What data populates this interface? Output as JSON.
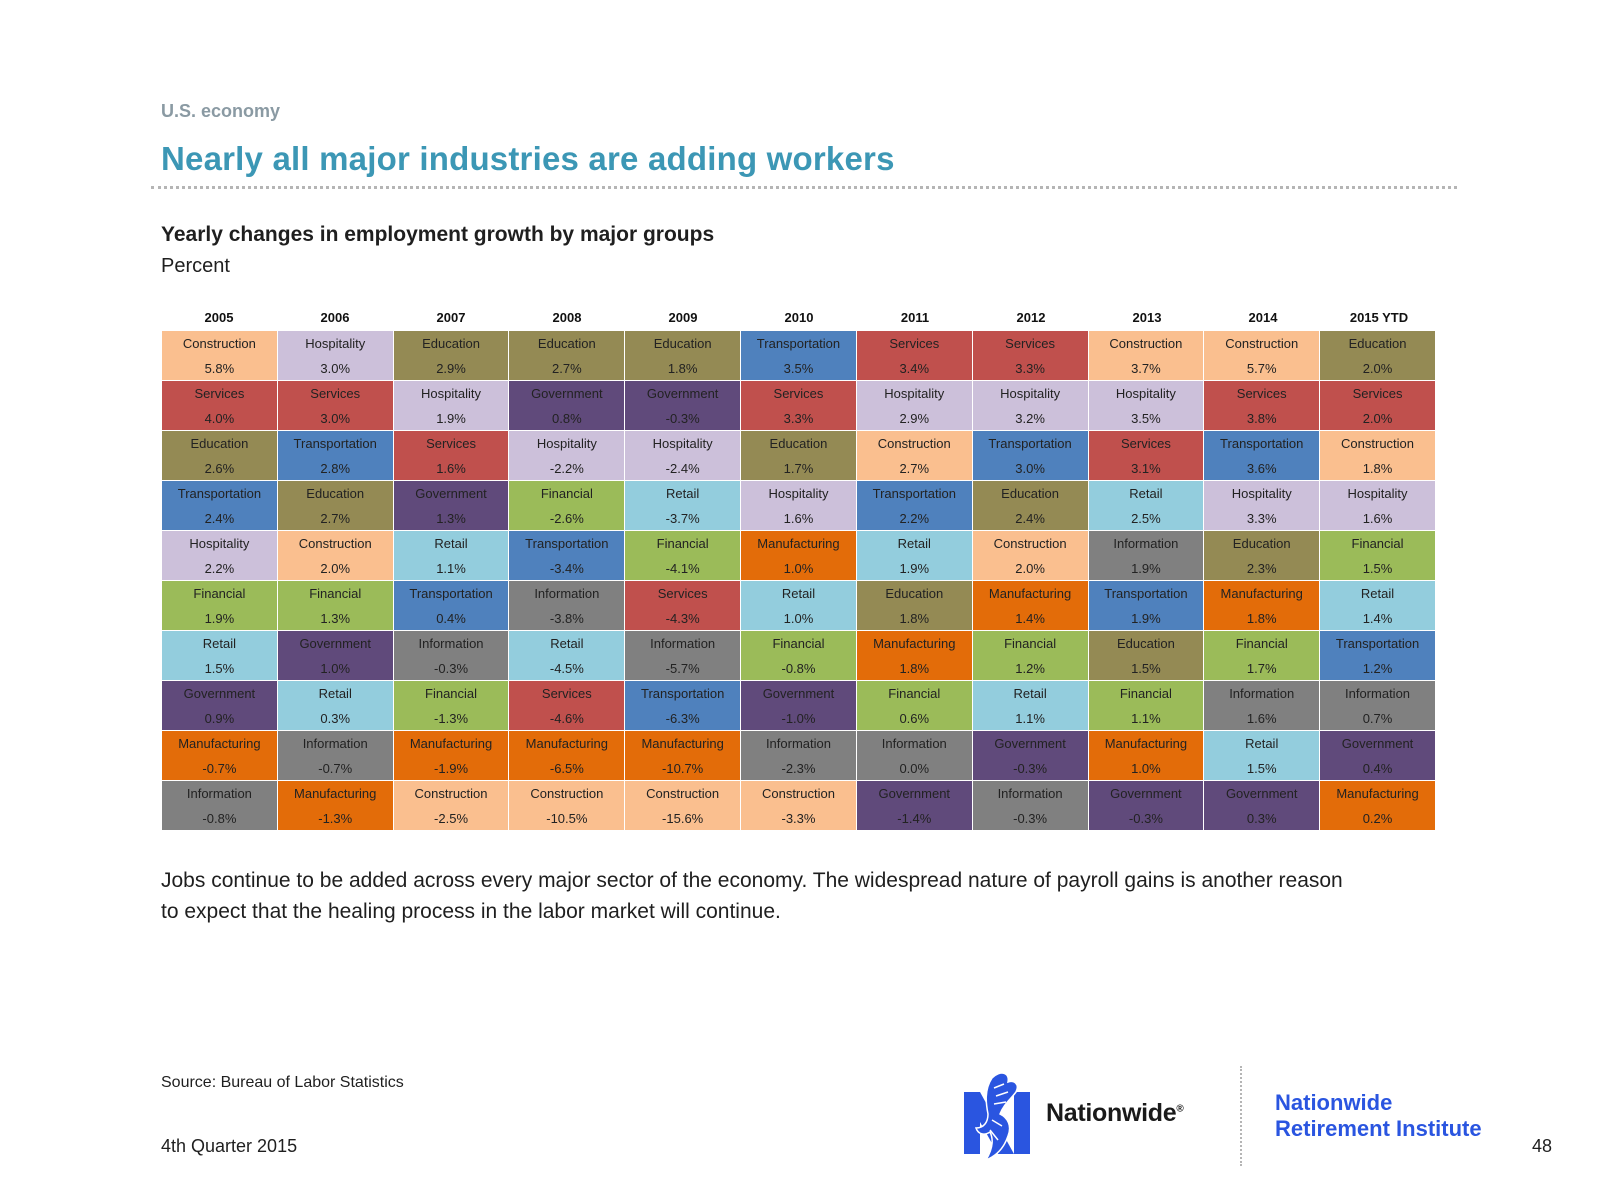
{
  "header": {
    "kicker": "U.S. economy",
    "title": "Nearly all major industries are adding workers"
  },
  "chart_data": {
    "type": "table",
    "title": "Yearly changes in employment growth by major groups",
    "subtitle": "Percent",
    "years": [
      "2005",
      "2006",
      "2007",
      "2008",
      "2009",
      "2010",
      "2011",
      "2012",
      "2013",
      "2014",
      "2015 YTD"
    ],
    "sector_colors": {
      "Construction": "#fabf8f",
      "Hospitality": "#ccc0da",
      "Education": "#948a54",
      "Services": "#c0504d",
      "Government": "#604a7b",
      "Transportation": "#4f81bd",
      "Financial": "#9bbb59",
      "Retail": "#93cddd",
      "Information": "#808080",
      "Manufacturing": "#e36c09"
    },
    "columns": [
      [
        [
          "Construction",
          "5.8%"
        ],
        [
          "Services",
          "4.0%"
        ],
        [
          "Education",
          "2.6%"
        ],
        [
          "Transportation",
          "2.4%"
        ],
        [
          "Hospitality",
          "2.2%"
        ],
        [
          "Financial",
          "1.9%"
        ],
        [
          "Retail",
          "1.5%"
        ],
        [
          "Government",
          "0.9%"
        ],
        [
          "Manufacturing",
          "-0.7%"
        ],
        [
          "Information",
          "-0.8%"
        ]
      ],
      [
        [
          "Hospitality",
          "3.0%"
        ],
        [
          "Services",
          "3.0%"
        ],
        [
          "Transportation",
          "2.8%"
        ],
        [
          "Education",
          "2.7%"
        ],
        [
          "Construction",
          "2.0%"
        ],
        [
          "Financial",
          "1.3%"
        ],
        [
          "Government",
          "1.0%"
        ],
        [
          "Retail",
          "0.3%"
        ],
        [
          "Information",
          "-0.7%"
        ],
        [
          "Manufacturing",
          "-1.3%"
        ]
      ],
      [
        [
          "Education",
          "2.9%"
        ],
        [
          "Hospitality",
          "1.9%"
        ],
        [
          "Services",
          "1.6%"
        ],
        [
          "Government",
          "1.3%"
        ],
        [
          "Retail",
          "1.1%"
        ],
        [
          "Transportation",
          "0.4%"
        ],
        [
          "Information",
          "-0.3%"
        ],
        [
          "Financial",
          "-1.3%"
        ],
        [
          "Manufacturing",
          "-1.9%"
        ],
        [
          "Construction",
          "-2.5%"
        ]
      ],
      [
        [
          "Education",
          "2.7%"
        ],
        [
          "Government",
          "0.8%"
        ],
        [
          "Hospitality",
          "-2.2%"
        ],
        [
          "Financial",
          "-2.6%"
        ],
        [
          "Transportation",
          "-3.4%"
        ],
        [
          "Information",
          "-3.8%"
        ],
        [
          "Retail",
          "-4.5%"
        ],
        [
          "Services",
          "-4.6%"
        ],
        [
          "Manufacturing",
          "-6.5%"
        ],
        [
          "Construction",
          "-10.5%"
        ]
      ],
      [
        [
          "Education",
          "1.8%"
        ],
        [
          "Government",
          "-0.3%"
        ],
        [
          "Hospitality",
          "-2.4%"
        ],
        [
          "Retail",
          "-3.7%"
        ],
        [
          "Financial",
          "-4.1%"
        ],
        [
          "Services",
          "-4.3%"
        ],
        [
          "Information",
          "-5.7%"
        ],
        [
          "Transportation",
          "-6.3%"
        ],
        [
          "Manufacturing",
          "-10.7%"
        ],
        [
          "Construction",
          "-15.6%"
        ]
      ],
      [
        [
          "Transportation",
          "3.5%"
        ],
        [
          "Services",
          "3.3%"
        ],
        [
          "Education",
          "1.7%"
        ],
        [
          "Hospitality",
          "1.6%"
        ],
        [
          "Manufacturing",
          "1.0%"
        ],
        [
          "Retail",
          "1.0%"
        ],
        [
          "Financial",
          "-0.8%"
        ],
        [
          "Government",
          "-1.0%"
        ],
        [
          "Information",
          "-2.3%"
        ],
        [
          "Construction",
          "-3.3%"
        ]
      ],
      [
        [
          "Services",
          "3.4%"
        ],
        [
          "Hospitality",
          "2.9%"
        ],
        [
          "Construction",
          "2.7%"
        ],
        [
          "Transportation",
          "2.2%"
        ],
        [
          "Retail",
          "1.9%"
        ],
        [
          "Education",
          "1.8%"
        ],
        [
          "Manufacturing",
          "1.8%"
        ],
        [
          "Financial",
          "0.6%"
        ],
        [
          "Information",
          "0.0%"
        ],
        [
          "Government",
          "-1.4%"
        ]
      ],
      [
        [
          "Services",
          "3.3%"
        ],
        [
          "Hospitality",
          "3.2%"
        ],
        [
          "Transportation",
          "3.0%"
        ],
        [
          "Education",
          "2.4%"
        ],
        [
          "Construction",
          "2.0%"
        ],
        [
          "Manufacturing",
          "1.4%"
        ],
        [
          "Financial",
          "1.2%"
        ],
        [
          "Retail",
          "1.1%"
        ],
        [
          "Government",
          "-0.3%"
        ],
        [
          "Information",
          "-0.3%"
        ]
      ],
      [
        [
          "Construction",
          "3.7%"
        ],
        [
          "Hospitality",
          "3.5%"
        ],
        [
          "Services",
          "3.1%"
        ],
        [
          "Retail",
          "2.5%"
        ],
        [
          "Information",
          "1.9%"
        ],
        [
          "Transportation",
          "1.9%"
        ],
        [
          "Education",
          "1.5%"
        ],
        [
          "Financial",
          "1.1%"
        ],
        [
          "Manufacturing",
          "1.0%"
        ],
        [
          "Government",
          "-0.3%"
        ]
      ],
      [
        [
          "Construction",
          "5.7%"
        ],
        [
          "Services",
          "3.8%"
        ],
        [
          "Transportation",
          "3.6%"
        ],
        [
          "Hospitality",
          "3.3%"
        ],
        [
          "Education",
          "2.3%"
        ],
        [
          "Manufacturing",
          "1.8%"
        ],
        [
          "Financial",
          "1.7%"
        ],
        [
          "Information",
          "1.6%"
        ],
        [
          "Retail",
          "1.5%"
        ],
        [
          "Government",
          "0.3%"
        ]
      ],
      [
        [
          "Education",
          "2.0%"
        ],
        [
          "Services",
          "2.0%"
        ],
        [
          "Construction",
          "1.8%"
        ],
        [
          "Hospitality",
          "1.6%"
        ],
        [
          "Financial",
          "1.5%"
        ],
        [
          "Retail",
          "1.4%"
        ],
        [
          "Transportation",
          "1.2%"
        ],
        [
          "Information",
          "0.7%"
        ],
        [
          "Government",
          "0.4%"
        ],
        [
          "Manufacturing",
          "0.2%"
        ]
      ]
    ]
  },
  "body": {
    "text": "Jobs continue to be added across every major sector of the economy. The widespread nature of payroll gains is another reason to expect that the healing process in the labor market will continue."
  },
  "footer": {
    "source": "Source: Bureau of Labor Statistics",
    "quarter": "4th Quarter 2015",
    "page_number": "48",
    "brand": "Nationwide",
    "brand_mark": "®",
    "institute_line1": "Nationwide",
    "institute_line2": "Retirement Institute",
    "logo_icon": "eagle-icon"
  }
}
